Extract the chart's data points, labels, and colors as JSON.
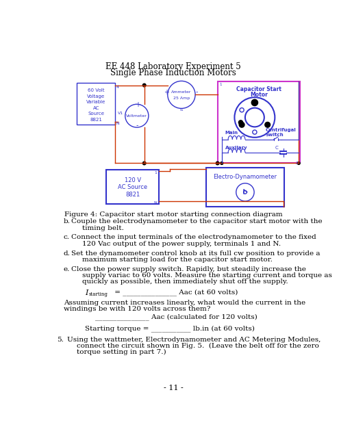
{
  "title_line1": "EE 448 Laboratory Experiment 5",
  "title_line2": "Single Phase Induction Motors",
  "fig_caption": "Figure 4: Capacitor start motor starting connection diagram",
  "page_num": "- 11 -",
  "bg_color": "#ffffff",
  "blue": "#3333cc",
  "wire_color": "#cc3300",
  "purple": "#9933cc",
  "black": "#000000",
  "csm_border": "#cc33cc"
}
